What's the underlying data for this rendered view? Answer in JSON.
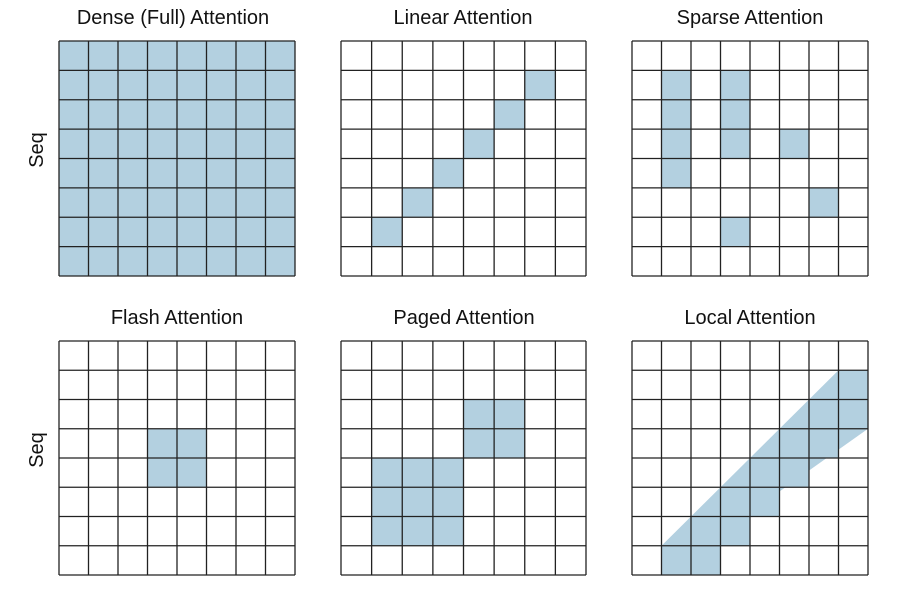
{
  "colors": {
    "fill": "#b3d0e0",
    "line": "#222222",
    "background": "#ffffff"
  },
  "grid_size": 8,
  "panels": [
    {
      "title": "Dense (Full) Attention",
      "axis_label": "Seq",
      "cells": "all"
    },
    {
      "title": "Linear Attention",
      "axis_label": "",
      "cells": [
        [
          1,
          6
        ],
        [
          2,
          5
        ],
        [
          3,
          4
        ],
        [
          4,
          3
        ],
        [
          5,
          2
        ],
        [
          6,
          1
        ]
      ]
    },
    {
      "title": "Sparse Attention",
      "axis_label": "",
      "cells": [
        [
          1,
          1
        ],
        [
          1,
          2
        ],
        [
          1,
          3
        ],
        [
          1,
          4
        ],
        [
          3,
          1
        ],
        [
          3,
          2
        ],
        [
          3,
          3
        ],
        [
          3,
          6
        ],
        [
          5,
          3
        ],
        [
          6,
          5
        ]
      ]
    },
    {
      "title": "Flash Attention",
      "axis_label": "Seq",
      "cells": [
        [
          3,
          3
        ],
        [
          4,
          3
        ],
        [
          3,
          4
        ],
        [
          4,
          4
        ]
      ]
    },
    {
      "title": "Paged Attention",
      "axis_label": "",
      "cells": [
        [
          4,
          2
        ],
        [
          5,
          2
        ],
        [
          4,
          3
        ],
        [
          5,
          3
        ],
        [
          1,
          4
        ],
        [
          2,
          4
        ],
        [
          3,
          4
        ],
        [
          1,
          5
        ],
        [
          2,
          5
        ],
        [
          3,
          5
        ],
        [
          1,
          6
        ],
        [
          2,
          6
        ],
        [
          3,
          6
        ]
      ]
    },
    {
      "title": "Local Attention",
      "axis_label": "",
      "cells": [
        [
          7,
          1
        ],
        [
          7,
          2
        ],
        [
          6,
          2
        ],
        [
          6,
          3
        ],
        [
          5,
          3
        ],
        [
          5,
          4
        ],
        [
          4,
          4
        ],
        [
          4,
          5
        ],
        [
          3,
          5
        ],
        [
          3,
          6
        ],
        [
          2,
          6
        ],
        [
          2,
          7
        ],
        [
          1,
          7
        ]
      ],
      "diagonal_band": true
    }
  ]
}
